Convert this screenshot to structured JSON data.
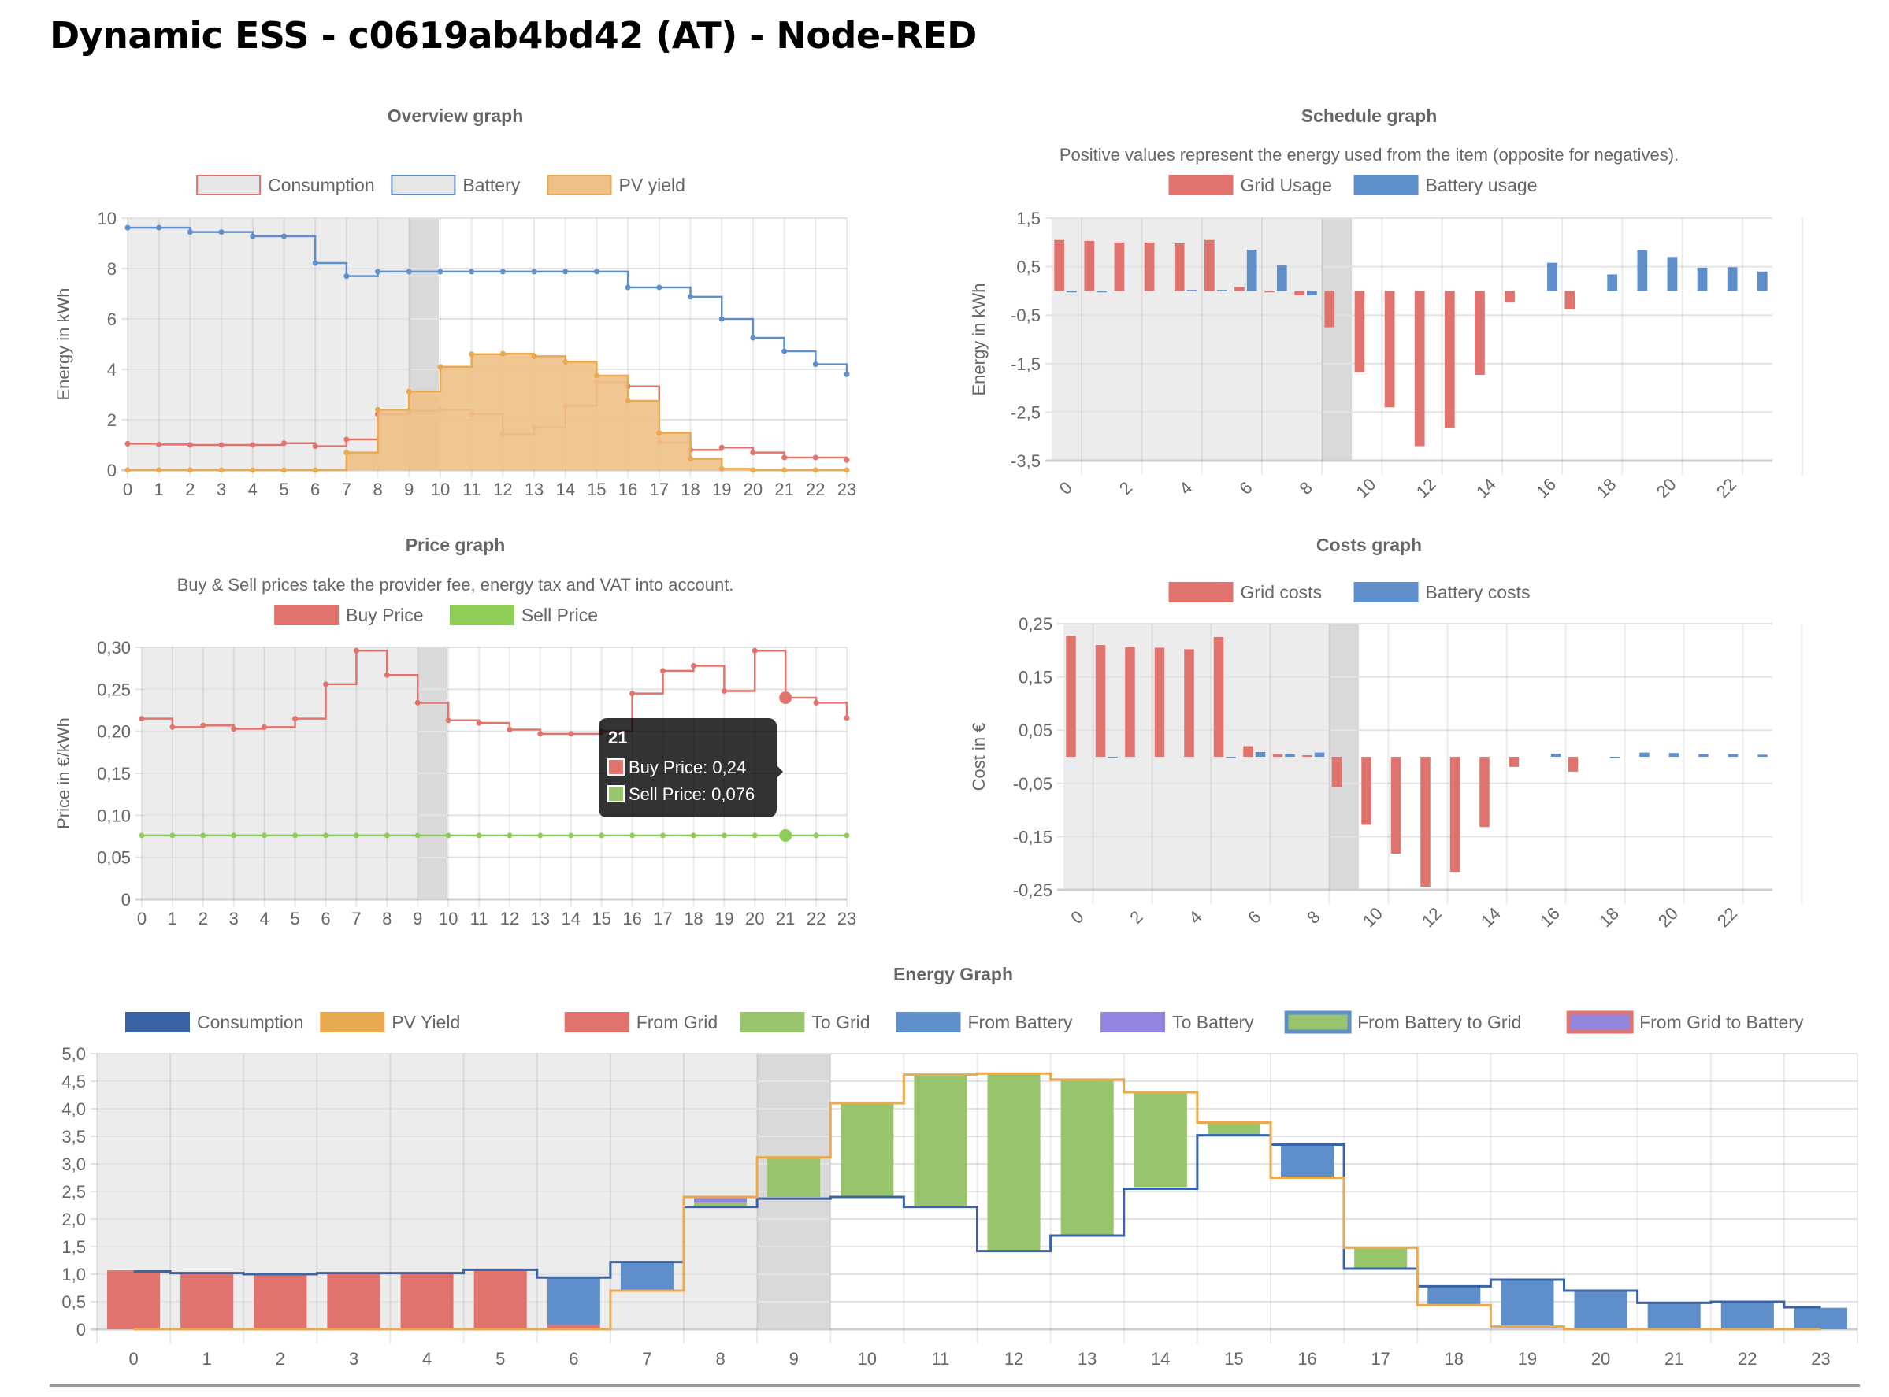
{
  "page": {
    "title": "Dynamic ESS - c0619ab4bd42 (AT) - Node-RED"
  },
  "colors": {
    "red": "#e0736d",
    "blue": "#5f8fcb",
    "darkblue": "#3a63a8",
    "orange": "#e9a94f",
    "orange_fill": "#eec187",
    "green": "#98c46c",
    "sell_green": "#8fce56",
    "purple": "#9385e0",
    "past_shade": "#ececec",
    "current_shade": "#d9d9d9",
    "grid": "#e3e3e3"
  },
  "chart_data": [
    {
      "id": "overview",
      "type": "line",
      "title": "Overview graph",
      "subtitle": "",
      "xlabel": "",
      "ylabel": "Energy in kWh",
      "categories": [
        "0",
        "1",
        "2",
        "3",
        "4",
        "5",
        "6",
        "7",
        "8",
        "9",
        "10",
        "11",
        "12",
        "13",
        "14",
        "15",
        "16",
        "17",
        "18",
        "19",
        "20",
        "21",
        "22",
        "23"
      ],
      "ylim": [
        0,
        10
      ],
      "yticks": [
        "0",
        "2",
        "4",
        "6",
        "8",
        "10"
      ],
      "ytick_values": [
        0,
        2,
        4,
        6,
        8,
        10
      ],
      "grid": true,
      "legend_position": "top",
      "past_until_hour": 9,
      "current_hour": 9,
      "series": [
        {
          "name": "Consumption",
          "color": "red",
          "legend_fill": "#e6e6e6",
          "values": [
            1.05,
            1.02,
            1.0,
            1.0,
            1.0,
            1.07,
            0.95,
            1.22,
            2.22,
            2.35,
            2.4,
            2.22,
            1.42,
            1.7,
            2.55,
            3.5,
            3.32,
            1.1,
            0.8,
            0.9,
            0.7,
            0.5,
            0.5,
            0.4
          ]
        },
        {
          "name": "Battery",
          "color": "blue",
          "legend_fill": "#e6e6e6",
          "values": [
            9.62,
            9.62,
            9.45,
            9.45,
            9.28,
            9.28,
            8.22,
            7.7,
            7.88,
            7.88,
            7.88,
            7.88,
            7.88,
            7.88,
            7.88,
            7.88,
            7.25,
            7.25,
            6.88,
            6.0,
            5.25,
            4.72,
            4.2,
            3.8
          ]
        },
        {
          "name": "PV yield",
          "color": "orange",
          "legend_fill": "#eec187",
          "fill": true,
          "values": [
            0,
            0,
            0,
            0,
            0,
            0,
            0,
            0.7,
            2.4,
            3.12,
            4.1,
            4.6,
            4.62,
            4.52,
            4.3,
            3.75,
            2.75,
            1.48,
            0.45,
            0.05,
            0,
            0,
            0,
            0
          ]
        }
      ]
    },
    {
      "id": "schedule",
      "type": "bar",
      "title": "Schedule graph",
      "subtitle": "Positive values represent the energy used from the item (opposite for negatives).",
      "xlabel": "",
      "ylabel": "Energy in kWh",
      "categories": [
        "0",
        "1",
        "2",
        "3",
        "4",
        "5",
        "6",
        "7",
        "8",
        "9",
        "10",
        "11",
        "12",
        "13",
        "14",
        "15",
        "16",
        "17",
        "18",
        "19",
        "20",
        "21",
        "22",
        "23"
      ],
      "xtick_labels": [
        "0",
        "2",
        "4",
        "6",
        "8",
        "10",
        "12",
        "14",
        "16",
        "18",
        "20",
        "22"
      ],
      "ylim": [
        -3.5,
        1.5
      ],
      "yticks": [
        "1,5",
        "0,5",
        "-0,5",
        "-1,5",
        "-2,5",
        "-3,5"
      ],
      "ytick_values": [
        1.5,
        0.5,
        -0.5,
        -1.5,
        -2.5,
        -3.5
      ],
      "grid": true,
      "legend_position": "top",
      "current_hour": 9,
      "series": [
        {
          "name": "Grid Usage",
          "color": "red",
          "values": [
            1.05,
            1.03,
            1.0,
            1.0,
            0.98,
            1.05,
            0.08,
            -0.03,
            -0.09,
            -0.75,
            -1.68,
            -2.4,
            -3.2,
            -2.83,
            -1.73,
            -0.24,
            0,
            -0.38,
            0,
            0,
            0,
            0,
            0,
            0
          ]
        },
        {
          "name": "Battery usage",
          "color": "blue",
          "values": [
            -0.03,
            -0.03,
            0,
            0,
            0.02,
            0.02,
            0.85,
            0.53,
            -0.09,
            0,
            0,
            0,
            0,
            0,
            0,
            0,
            0.58,
            0,
            0.34,
            0.84,
            0.7,
            0.48,
            0.49,
            0.4
          ]
        }
      ]
    },
    {
      "id": "price",
      "type": "line",
      "title": "Price graph",
      "subtitle": "Buy & Sell prices take the provider fee, energy tax and VAT into account.",
      "xlabel": "",
      "ylabel": "Price in €/kWh",
      "categories": [
        "0",
        "1",
        "2",
        "3",
        "4",
        "5",
        "6",
        "7",
        "8",
        "9",
        "10",
        "11",
        "12",
        "13",
        "14",
        "15",
        "16",
        "17",
        "18",
        "19",
        "20",
        "21",
        "22",
        "23"
      ],
      "ylim": [
        0,
        0.3
      ],
      "yticks": [
        "0",
        "0,05",
        "0,10",
        "0,15",
        "0,20",
        "0,25",
        "0,30"
      ],
      "ytick_values": [
        0,
        0.05,
        0.1,
        0.15,
        0.2,
        0.25,
        0.3
      ],
      "grid": true,
      "legend_position": "top",
      "current_hour": 9,
      "series": [
        {
          "name": "Buy Price",
          "color": "red",
          "values": [
            0.215,
            0.205,
            0.207,
            0.203,
            0.205,
            0.215,
            0.256,
            0.296,
            0.267,
            0.234,
            0.213,
            0.21,
            0.202,
            0.197,
            0.197,
            0.2,
            0.245,
            0.272,
            0.278,
            0.248,
            0.296,
            0.24,
            0.234,
            0.216
          ]
        },
        {
          "name": "Sell Price",
          "color": "sell_green",
          "values": [
            0.076,
            0.076,
            0.076,
            0.076,
            0.076,
            0.076,
            0.076,
            0.076,
            0.076,
            0.076,
            0.076,
            0.076,
            0.076,
            0.076,
            0.076,
            0.076,
            0.076,
            0.076,
            0.076,
            0.076,
            0.076,
            0.076,
            0.076,
            0.076
          ]
        }
      ],
      "tooltip": {
        "hour_index": 21,
        "title": "21",
        "lines": [
          "Buy Price: 0,24",
          "Sell Price: 0,076"
        ]
      }
    },
    {
      "id": "costs",
      "type": "bar",
      "title": "Costs graph",
      "subtitle": "",
      "xlabel": "",
      "ylabel": "Cost in €",
      "categories": [
        "0",
        "1",
        "2",
        "3",
        "4",
        "5",
        "6",
        "7",
        "8",
        "9",
        "10",
        "11",
        "12",
        "13",
        "14",
        "15",
        "16",
        "17",
        "18",
        "19",
        "20",
        "21",
        "22",
        "23"
      ],
      "xtick_labels": [
        "0",
        "2",
        "4",
        "6",
        "8",
        "10",
        "12",
        "14",
        "16",
        "18",
        "20",
        "22"
      ],
      "ylim": [
        -0.25,
        0.25
      ],
      "yticks": [
        "0,25",
        "0,15",
        "0,05",
        "-0,05",
        "-0,15",
        "-0,25"
      ],
      "ytick_values": [
        0.25,
        0.15,
        0.05,
        -0.05,
        -0.15,
        -0.25
      ],
      "grid": true,
      "legend_position": "top",
      "current_hour": 9,
      "series": [
        {
          "name": "Grid costs",
          "color": "red",
          "values": [
            0.227,
            0.21,
            0.206,
            0.205,
            0.202,
            0.225,
            0.02,
            0.005,
            0.003,
            -0.057,
            -0.128,
            -0.182,
            -0.244,
            -0.216,
            -0.132,
            -0.019,
            0,
            -0.028,
            0,
            0,
            0,
            0,
            0,
            0
          ]
        },
        {
          "name": "Battery costs",
          "color": "blue",
          "values": [
            0,
            -0.001,
            0,
            0,
            0,
            -0.001,
            0.009,
            0.005,
            0.008,
            0,
            0,
            0,
            0,
            0,
            0,
            0,
            0.006,
            0,
            -0.003,
            0.008,
            0.007,
            0.005,
            0.005,
            0.004
          ]
        }
      ]
    },
    {
      "id": "energy",
      "type": "bar",
      "title": "Energy Graph",
      "subtitle": "",
      "xlabel": "",
      "ylabel": "",
      "categories": [
        "0",
        "1",
        "2",
        "3",
        "4",
        "5",
        "6",
        "7",
        "8",
        "9",
        "10",
        "11",
        "12",
        "13",
        "14",
        "15",
        "16",
        "17",
        "18",
        "19",
        "20",
        "21",
        "22",
        "23"
      ],
      "ylim": [
        0,
        5.0
      ],
      "yticks": [
        "0",
        "0,5",
        "1,0",
        "1,5",
        "2,0",
        "2,5",
        "3,0",
        "3,5",
        "4,0",
        "4,5",
        "5,0"
      ],
      "ytick_values": [
        0,
        0.5,
        1.0,
        1.5,
        2.0,
        2.5,
        3.0,
        3.5,
        4.0,
        4.5,
        5.0
      ],
      "grid": true,
      "legend_position": "top",
      "current_hour": 9,
      "legend": [
        {
          "name": "Consumption",
          "fill": "darkblue",
          "border": "darkblue"
        },
        {
          "name": "PV Yield",
          "fill": "orange",
          "border": "orange"
        },
        {
          "name": "From Grid",
          "fill": "red",
          "border": "red"
        },
        {
          "name": "To Grid",
          "fill": "green",
          "border": "green"
        },
        {
          "name": "From Battery",
          "fill": "blue",
          "border": "blue"
        },
        {
          "name": "To Battery",
          "fill": "purple",
          "border": "purple"
        },
        {
          "name": "From Battery to Grid",
          "fill": "green",
          "border": "blue"
        },
        {
          "name": "From Grid to Battery",
          "fill": "purple",
          "border": "red"
        }
      ],
      "lines": [
        {
          "name": "Consumption",
          "color": "darkblue",
          "values": [
            1.05,
            1.02,
            1.0,
            1.02,
            1.02,
            1.08,
            0.94,
            1.22,
            2.22,
            2.37,
            2.4,
            2.22,
            1.42,
            1.7,
            2.55,
            3.52,
            3.35,
            1.1,
            0.78,
            0.9,
            0.7,
            0.48,
            0.5,
            0.4
          ]
        },
        {
          "name": "PV Yield",
          "color": "orange",
          "values": [
            0,
            0,
            0,
            0,
            0,
            0,
            0,
            0.7,
            2.4,
            3.12,
            4.1,
            4.62,
            4.64,
            4.53,
            4.3,
            3.75,
            2.75,
            1.48,
            0.44,
            0.05,
            0,
            0,
            0,
            0
          ]
        }
      ],
      "stacks": [
        {
          "name": "From Grid",
          "fill": "red",
          "base": [
            0,
            0,
            0,
            0,
            0,
            0,
            0,
            0,
            0,
            0,
            0,
            0,
            0,
            0,
            0,
            0,
            0,
            0,
            0,
            0,
            0,
            0,
            0,
            0
          ],
          "values": [
            1.07,
            1.04,
            1.0,
            1.02,
            1.0,
            1.07,
            0.08,
            0,
            0,
            0,
            0,
            0,
            0,
            0,
            0,
            0,
            0,
            0,
            0,
            0,
            0,
            0,
            0,
            0
          ]
        },
        {
          "name": "From Battery",
          "fill": "blue",
          "base": [
            0,
            0,
            0,
            0,
            0,
            0,
            0.08,
            0.7,
            0,
            0,
            0,
            0,
            0,
            0,
            0,
            0,
            2.75,
            0,
            0.45,
            0.07,
            0,
            0,
            0,
            0
          ],
          "values": [
            0,
            0,
            0,
            0,
            0,
            0,
            0.85,
            0.52,
            0,
            0,
            0,
            0,
            0,
            0,
            0,
            0,
            0.6,
            0,
            0.33,
            0.83,
            0.7,
            0.48,
            0.49,
            0.39
          ]
        },
        {
          "name": "To Grid",
          "fill": "green",
          "base": [
            0,
            0,
            0,
            0,
            0,
            0,
            0,
            0,
            2.22,
            2.4,
            2.42,
            2.22,
            1.43,
            1.7,
            2.58,
            3.53,
            0,
            1.12,
            0,
            0,
            0,
            0,
            0,
            0
          ],
          "values": [
            0,
            0,
            0,
            0,
            0,
            0,
            0,
            0,
            0.08,
            0.72,
            1.68,
            2.4,
            3.2,
            2.84,
            1.72,
            0.24,
            0,
            0.36,
            0,
            0,
            0,
            0,
            0,
            0
          ]
        },
        {
          "name": "To Battery",
          "fill": "purple",
          "base": [
            0,
            0,
            0,
            0,
            0,
            0,
            0,
            0,
            2.3,
            0,
            0,
            0,
            0,
            0,
            0,
            0,
            0,
            0,
            0,
            0,
            0,
            0,
            0,
            0
          ],
          "values": [
            0,
            0,
            0,
            0,
            0,
            0,
            0,
            0,
            0.08,
            0,
            0,
            0,
            0,
            0,
            0,
            0,
            0,
            0,
            0,
            0,
            0,
            0,
            0,
            0
          ]
        }
      ]
    }
  ]
}
